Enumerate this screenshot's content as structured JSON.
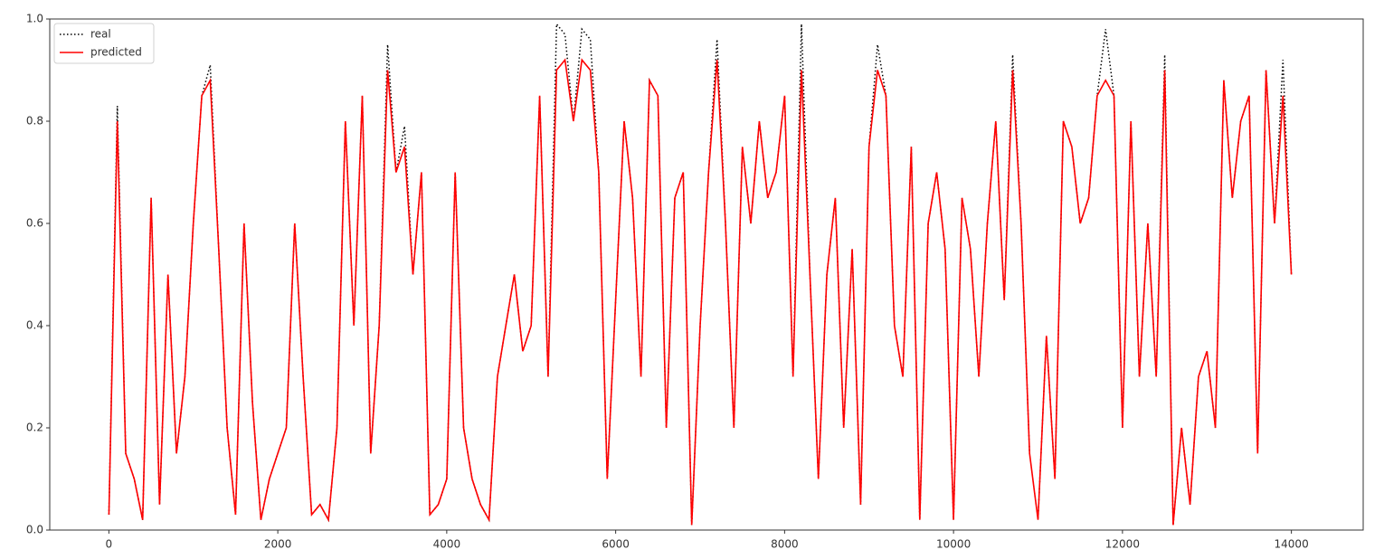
{
  "chart_data": {
    "type": "line",
    "x": [
      0,
      100,
      200,
      300,
      400,
      500,
      600,
      700,
      800,
      900,
      1000,
      1100,
      1200,
      1300,
      1400,
      1500,
      1600,
      1700,
      1800,
      1900,
      2000,
      2100,
      2200,
      2300,
      2400,
      2500,
      2600,
      2700,
      2800,
      2900,
      3000,
      3100,
      3200,
      3300,
      3400,
      3500,
      3600,
      3700,
      3800,
      3900,
      4000,
      4100,
      4200,
      4300,
      4400,
      4500,
      4600,
      4700,
      4800,
      4900,
      5000,
      5100,
      5200,
      5300,
      5400,
      5500,
      5600,
      5700,
      5800,
      5900,
      6000,
      6100,
      6200,
      6300,
      6400,
      6500,
      6600,
      6700,
      6800,
      6900,
      7000,
      7100,
      7200,
      7300,
      7400,
      7500,
      7600,
      7700,
      7800,
      7900,
      8000,
      8100,
      8200,
      8300,
      8400,
      8500,
      8600,
      8700,
      8800,
      8900,
      9000,
      9100,
      9200,
      9300,
      9400,
      9500,
      9600,
      9700,
      9800,
      9900,
      10000,
      10100,
      10200,
      10300,
      10400,
      10500,
      10600,
      10700,
      10800,
      10900,
      11000,
      11100,
      11200,
      11300,
      11400,
      11500,
      11600,
      11700,
      11800,
      11900,
      12000,
      12100,
      12200,
      12300,
      12400,
      12500,
      12600,
      12700,
      12800,
      12900,
      13000,
      13100,
      13200,
      13300,
      13400,
      13500,
      13600,
      13700,
      13800,
      13900,
      14000
    ],
    "series": [
      {
        "name": "real",
        "color": "#000000",
        "style": "dotted",
        "values": [
          0.03,
          0.83,
          0.15,
          0.1,
          0.02,
          0.65,
          0.05,
          0.5,
          0.15,
          0.3,
          0.6,
          0.85,
          0.91,
          0.55,
          0.2,
          0.03,
          0.6,
          0.25,
          0.02,
          0.1,
          0.15,
          0.2,
          0.6,
          0.3,
          0.03,
          0.05,
          0.02,
          0.2,
          0.8,
          0.4,
          0.85,
          0.15,
          0.4,
          0.95,
          0.7,
          0.79,
          0.5,
          0.7,
          0.03,
          0.05,
          0.1,
          0.7,
          0.2,
          0.1,
          0.05,
          0.02,
          0.3,
          0.4,
          0.5,
          0.35,
          0.4,
          0.85,
          0.3,
          0.99,
          0.97,
          0.8,
          0.98,
          0.96,
          0.7,
          0.1,
          0.45,
          0.8,
          0.65,
          0.3,
          0.88,
          0.85,
          0.2,
          0.65,
          0.7,
          0.01,
          0.4,
          0.7,
          0.96,
          0.6,
          0.2,
          0.75,
          0.6,
          0.8,
          0.65,
          0.7,
          0.85,
          0.3,
          0.99,
          0.5,
          0.1,
          0.5,
          0.65,
          0.2,
          0.55,
          0.05,
          0.75,
          0.95,
          0.85,
          0.4,
          0.3,
          0.75,
          0.02,
          0.6,
          0.7,
          0.55,
          0.02,
          0.65,
          0.55,
          0.3,
          0.6,
          0.8,
          0.45,
          0.93,
          0.6,
          0.15,
          0.02,
          0.38,
          0.1,
          0.8,
          0.75,
          0.6,
          0.65,
          0.85,
          0.98,
          0.85,
          0.2,
          0.8,
          0.3,
          0.6,
          0.3,
          0.93,
          0.01,
          0.2,
          0.05,
          0.3,
          0.35,
          0.2,
          0.88,
          0.65,
          0.8,
          0.85,
          0.15,
          0.9,
          0.6,
          0.92,
          0.5
        ]
      },
      {
        "name": "predicted",
        "color": "#ff0000",
        "style": "solid",
        "values": [
          0.03,
          0.8,
          0.15,
          0.1,
          0.02,
          0.65,
          0.05,
          0.5,
          0.15,
          0.3,
          0.6,
          0.85,
          0.88,
          0.55,
          0.2,
          0.03,
          0.6,
          0.25,
          0.02,
          0.1,
          0.15,
          0.2,
          0.6,
          0.3,
          0.03,
          0.05,
          0.02,
          0.2,
          0.8,
          0.4,
          0.85,
          0.15,
          0.4,
          0.9,
          0.7,
          0.75,
          0.5,
          0.7,
          0.03,
          0.05,
          0.1,
          0.7,
          0.2,
          0.1,
          0.05,
          0.02,
          0.3,
          0.4,
          0.5,
          0.35,
          0.4,
          0.85,
          0.3,
          0.9,
          0.92,
          0.8,
          0.92,
          0.9,
          0.7,
          0.1,
          0.45,
          0.8,
          0.65,
          0.3,
          0.88,
          0.85,
          0.2,
          0.65,
          0.7,
          0.01,
          0.4,
          0.7,
          0.92,
          0.6,
          0.2,
          0.75,
          0.6,
          0.8,
          0.65,
          0.7,
          0.85,
          0.3,
          0.9,
          0.5,
          0.1,
          0.5,
          0.65,
          0.2,
          0.55,
          0.05,
          0.75,
          0.9,
          0.85,
          0.4,
          0.3,
          0.75,
          0.02,
          0.6,
          0.7,
          0.55,
          0.02,
          0.65,
          0.55,
          0.3,
          0.6,
          0.8,
          0.45,
          0.9,
          0.6,
          0.15,
          0.02,
          0.38,
          0.1,
          0.8,
          0.75,
          0.6,
          0.65,
          0.85,
          0.88,
          0.85,
          0.2,
          0.8,
          0.3,
          0.6,
          0.3,
          0.9,
          0.01,
          0.2,
          0.05,
          0.3,
          0.35,
          0.2,
          0.88,
          0.65,
          0.8,
          0.85,
          0.15,
          0.9,
          0.6,
          0.85,
          0.5
        ]
      }
    ],
    "xlim": [
      -700,
      14850
    ],
    "ylim": [
      0,
      1
    ],
    "xticks": [
      0,
      2000,
      4000,
      6000,
      8000,
      10000,
      12000,
      14000
    ],
    "yticks": [
      {
        "value": 0,
        "label": "0.0"
      },
      0.2,
      0.4,
      0.6,
      0.8,
      {
        "value": 1,
        "label": "1.0"
      }
    ],
    "legend": "upper left"
  }
}
